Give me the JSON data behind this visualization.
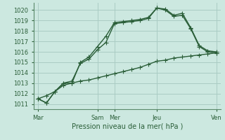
{
  "xlabel": "Pression niveau de la mer( hPa )",
  "bg_color": "#cce8e0",
  "grid_color": "#aaccc4",
  "line_color": "#2a5e38",
  "spine_color": "#5a8a6a",
  "ylim": [
    1010.5,
    1020.7
  ],
  "xlim": [
    -0.5,
    21.5
  ],
  "yticks": [
    1011,
    1012,
    1013,
    1014,
    1015,
    1016,
    1017,
    1018,
    1019,
    1020
  ],
  "xtick_positions": [
    0,
    7,
    9,
    14,
    21
  ],
  "xtick_labels": [
    "Mar",
    "Sam",
    "Mer",
    "Jeu",
    "Ven"
  ],
  "vline_positions": [
    0,
    7,
    9,
    14,
    21
  ],
  "line1_x": [
    0,
    1,
    2,
    3,
    4,
    5,
    6,
    7,
    8,
    9,
    10,
    11,
    12,
    13,
    14,
    15,
    16,
    17,
    18,
    19,
    20,
    21
  ],
  "line1_y": [
    1011.5,
    1011.1,
    1012.2,
    1013.0,
    1013.2,
    1014.9,
    1015.3,
    1016.2,
    1016.9,
    1018.7,
    1018.8,
    1018.9,
    1019.0,
    1019.2,
    1020.2,
    1020.0,
    1019.4,
    1019.5,
    1018.2,
    1016.5,
    1016.0,
    1015.9
  ],
  "line2_x": [
    0,
    1,
    2,
    3,
    4,
    5,
    6,
    7,
    8,
    9,
    10,
    11,
    12,
    13,
    14,
    15,
    16,
    17,
    18,
    19,
    20,
    21
  ],
  "line2_y": [
    1011.5,
    1011.1,
    1012.2,
    1013.0,
    1013.0,
    1015.0,
    1015.5,
    1016.5,
    1017.5,
    1018.8,
    1018.9,
    1019.0,
    1019.1,
    1019.3,
    1020.2,
    1020.1,
    1019.5,
    1019.7,
    1018.3,
    1016.6,
    1016.1,
    1016.0
  ],
  "line3_x": [
    0,
    1,
    2,
    3,
    4,
    5,
    6,
    7,
    8,
    9,
    10,
    11,
    12,
    13,
    14,
    15,
    16,
    17,
    18,
    19,
    20,
    21
  ],
  "line3_y": [
    1011.5,
    1011.8,
    1012.2,
    1012.8,
    1013.0,
    1013.2,
    1013.3,
    1013.5,
    1013.7,
    1013.9,
    1014.1,
    1014.3,
    1014.5,
    1014.8,
    1015.1,
    1015.2,
    1015.4,
    1015.5,
    1015.6,
    1015.7,
    1015.8,
    1015.9
  ],
  "marker_size": 2.5,
  "line_width": 1.0
}
